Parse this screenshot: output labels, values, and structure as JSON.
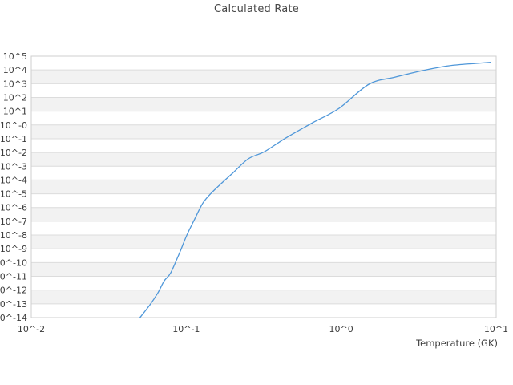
{
  "colors": {
    "background": "#ffffff",
    "band": "#f2f2f2",
    "gridline": "#dcdcdc",
    "frame": "#cfcfcf",
    "line": "#4f97d9",
    "tick_text": "#3c3c3c",
    "title_text": "#474747"
  },
  "chart_data": {
    "type": "line",
    "title": "Calculated Rate",
    "xlabel": "Temperature (GK)",
    "ylabel": "",
    "x_scale": "log",
    "y_scale": "log",
    "xlim": [
      0.01,
      10
    ],
    "ylim": [
      1e-14,
      100000.0
    ],
    "grid": "horizontal-only, alternating decade bands",
    "legend": "none",
    "x_tick_values": [
      0.01,
      0.1,
      1,
      10
    ],
    "x_tick_labels": [
      "10^-2",
      "10^-1",
      "10^0",
      "10^1"
    ],
    "y_tick_labels": [
      "10^5",
      "10^4",
      "10^3",
      "10^2",
      "10^1",
      "10^-0",
      "10^-1",
      "10^-2",
      "10^-3",
      "10^-4",
      "10^-5",
      "10^-6",
      "10^-7",
      "10^-8",
      "10^-9",
      "10^-10",
      "10^-11",
      "10^-12",
      "10^-13",
      "10^-14"
    ],
    "series": [
      {
        "name": "calculated-rate",
        "points_T_rate": [
          [
            0.0503,
            1e-14
          ],
          [
            0.0583,
            8.5e-14
          ],
          [
            0.0657,
            6.5e-13
          ],
          [
            0.0722,
            4.8e-12
          ],
          [
            0.0794,
            1.8e-11
          ],
          [
            0.0916,
            6.9e-10
          ],
          [
            0.1009,
            1e-08
          ],
          [
            0.1136,
            1.5e-07
          ],
          [
            0.128,
            2.1e-06
          ],
          [
            0.146,
            1.2e-05
          ],
          [
            0.17,
            6.2e-05
          ],
          [
            0.199,
            0.00031
          ],
          [
            0.252,
            0.0035
          ],
          [
            0.32,
            0.0115
          ],
          [
            0.44,
            0.115
          ],
          [
            0.654,
            1.45
          ],
          [
            0.968,
            16
          ],
          [
            1.51,
            910
          ],
          [
            2.23,
            3000
          ],
          [
            3.35,
            8900
          ],
          [
            4.96,
            20000.0
          ],
          [
            7.35,
            29500.0
          ],
          [
            9.22,
            36000.0
          ]
        ]
      }
    ]
  }
}
